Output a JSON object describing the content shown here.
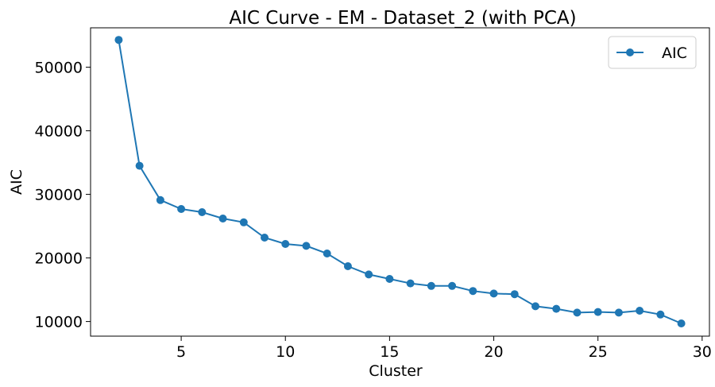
{
  "chart_data": {
    "type": "line",
    "title": "AIC Curve - EM - Dataset_2 (with PCA)",
    "xlabel": "Cluster",
    "ylabel": "AIC",
    "xlim": [
      0.65,
      30.35
    ],
    "ylim": [
      7700,
      56200
    ],
    "xticks": [
      5,
      10,
      15,
      20,
      25,
      30
    ],
    "yticks": [
      10000,
      20000,
      30000,
      40000,
      50000
    ],
    "grid": false,
    "legend_position": "top-right",
    "series": [
      {
        "name": "AIC",
        "color": "#1f77b4",
        "marker": "circle",
        "x": [
          2,
          3,
          4,
          5,
          6,
          7,
          8,
          9,
          10,
          11,
          12,
          13,
          14,
          15,
          16,
          17,
          18,
          19,
          20,
          21,
          22,
          23,
          24,
          25,
          26,
          27,
          28,
          29
        ],
        "y": [
          54300,
          34500,
          29100,
          27700,
          27200,
          26200,
          25600,
          23200,
          22200,
          21900,
          20700,
          18700,
          17400,
          16700,
          16000,
          15600,
          15600,
          14800,
          14400,
          14300,
          12400,
          12000,
          11400,
          11500,
          11400,
          11700,
          11100,
          9700
        ]
      }
    ]
  }
}
